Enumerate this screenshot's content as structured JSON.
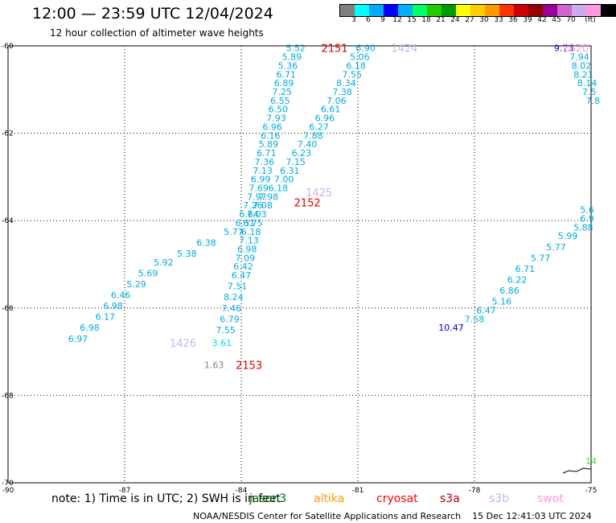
{
  "header": {
    "title": "12:00 — 23:59 UTC 12/04/2024",
    "subtitle": "12 hour collection of altimeter wave heights"
  },
  "colorbar": {
    "colors": [
      "#808080",
      "#00ffff",
      "#00aaff",
      "#0000ff",
      "#00b0ff",
      "#00ff66",
      "#22cc00",
      "#009900",
      "#ffff00",
      "#ffcc00",
      "#ff9900",
      "#ff3300",
      "#cc0000",
      "#990000",
      "#990099",
      "#cc66cc",
      "#ccaaee",
      "#ff99dd",
      "#000000"
    ],
    "labels": [
      "3",
      "6",
      "9",
      "12",
      "15",
      "18",
      "21",
      "24",
      "27",
      "30",
      "33",
      "36",
      "39",
      "42",
      "45",
      "70",
      "(ft)"
    ]
  },
  "footer": {
    "note": "note: 1) Time is in UTC; 2) SWH is in feet",
    "satellites": [
      {
        "name": "jason3",
        "color": "#006600"
      },
      {
        "name": "altika",
        "color": "#ff9900"
      },
      {
        "name": "cryosat",
        "color": "#ff0000"
      },
      {
        "name": "s3a",
        "color": "#aa0000"
      },
      {
        "name": "s3b",
        "color": "#c8b4ec"
      },
      {
        "name": "swot",
        "color": "#ff99dd"
      }
    ],
    "credit": "NOAA/NESDIS Center for Satellite Applications and Research    15 Dec 12:41:03 UTC 2024"
  },
  "chart_data": {
    "type": "scatter",
    "title": "12:00 — 23:59 UTC 12/04/2024",
    "subtitle": "12 hour collection of altimeter wave heights",
    "xlim": [
      -90,
      -75
    ],
    "ylim": [
      -70,
      -60
    ],
    "xticks": [
      -90,
      -87,
      -84,
      -81,
      -78,
      -75
    ],
    "yticks": [
      -60,
      -62,
      -64,
      -66,
      -68,
      -70
    ],
    "grid": true,
    "pass_labels": [
      {
        "text": "2151",
        "x": -81.6,
        "y": -60.05,
        "color": "#dd0000"
      },
      {
        "text": "1424",
        "x": -79.8,
        "y": -60.05,
        "color": "#c8b4ec"
      },
      {
        "text": "1820",
        "x": -75.4,
        "y": -60.05,
        "color": "#ff99dd"
      },
      {
        "text": "1425",
        "x": -82.0,
        "y": -63.35,
        "color": "#c8b4ec"
      },
      {
        "text": "2152",
        "x": -82.3,
        "y": -63.58,
        "color": "#dd0000"
      },
      {
        "text": "1426",
        "x": -85.5,
        "y": -66.8,
        "color": "#c8b4ec"
      },
      {
        "text": "2153",
        "x": -83.8,
        "y": -67.3,
        "color": "#dd0000"
      }
    ],
    "series": [
      {
        "name": "2151",
        "color": "#00aadd",
        "points": [
          {
            "x": -82.6,
            "y": -60.05,
            "v": "5.52"
          },
          {
            "x": -82.7,
            "y": -60.25,
            "v": "5.89"
          },
          {
            "x": -82.8,
            "y": -60.45,
            "v": "5.36"
          },
          {
            "x": -82.85,
            "y": -60.65,
            "v": "6.71"
          },
          {
            "x": -82.9,
            "y": -60.85,
            "v": "6.89"
          },
          {
            "x": -82.95,
            "y": -61.05,
            "v": "7.25"
          },
          {
            "x": -83.0,
            "y": -61.25,
            "v": "6.55"
          },
          {
            "x": -83.05,
            "y": -61.45,
            "v": "6.50"
          },
          {
            "x": -83.1,
            "y": -61.65,
            "v": "7.93"
          },
          {
            "x": -83.2,
            "y": -61.85,
            "v": "6.96"
          },
          {
            "x": -83.25,
            "y": -62.05,
            "v": "6.16"
          },
          {
            "x": -83.3,
            "y": -62.25,
            "v": "5.89"
          },
          {
            "x": -83.35,
            "y": -62.45,
            "v": "6.71"
          },
          {
            "x": -83.4,
            "y": -62.65,
            "v": "7.36"
          },
          {
            "x": -83.45,
            "y": -62.85,
            "v": "7.13"
          },
          {
            "x": -83.5,
            "y": -63.05,
            "v": "6.99"
          },
          {
            "x": -83.55,
            "y": -63.25,
            "v": "7.69"
          },
          {
            "x": -83.6,
            "y": -63.45,
            "v": "7.97"
          },
          {
            "x": -83.7,
            "y": -63.65,
            "v": "7.26"
          },
          {
            "x": -83.8,
            "y": -63.85,
            "v": "6.64"
          },
          {
            "x": -83.9,
            "y": -64.05,
            "v": "6.31"
          }
        ]
      },
      {
        "name": "1424",
        "color": "#00aadd",
        "points": [
          {
            "x": -80.8,
            "y": -60.05,
            "v": "6.90"
          },
          {
            "x": -80.95,
            "y": -60.25,
            "v": "5.06"
          },
          {
            "x": -81.05,
            "y": -60.45,
            "v": "6.18"
          },
          {
            "x": -81.15,
            "y": -60.65,
            "v": "7.55"
          },
          {
            "x": -81.3,
            "y": -60.85,
            "v": "8.34"
          },
          {
            "x": -81.4,
            "y": -61.05,
            "v": "7.38"
          },
          {
            "x": -81.55,
            "y": -61.25,
            "v": "7.06"
          },
          {
            "x": -81.7,
            "y": -61.45,
            "v": "6.61"
          },
          {
            "x": -81.85,
            "y": -61.65,
            "v": "6.96"
          },
          {
            "x": -82.0,
            "y": -61.85,
            "v": "6.27"
          },
          {
            "x": -82.15,
            "y": -62.05,
            "v": "7.88"
          },
          {
            "x": -82.3,
            "y": -62.25,
            "v": "7.40"
          },
          {
            "x": -82.45,
            "y": -62.45,
            "v": "6.23"
          },
          {
            "x": -82.6,
            "y": -62.65,
            "v": "7.15"
          },
          {
            "x": -82.75,
            "y": -62.85,
            "v": "6.31"
          },
          {
            "x": -82.9,
            "y": -63.05,
            "v": "7.00"
          },
          {
            "x": -83.05,
            "y": -63.25,
            "v": "6.18"
          },
          {
            "x": -83.3,
            "y": -63.45,
            "v": "7.98"
          },
          {
            "x": -83.45,
            "y": -63.65,
            "v": "7.08"
          }
        ]
      },
      {
        "name": "2152",
        "color": "#00aadd",
        "points": [
          {
            "x": -83.6,
            "y": -63.85,
            "v": "7.03"
          },
          {
            "x": -83.7,
            "y": -64.05,
            "v": "6.75"
          },
          {
            "x": -83.75,
            "y": -64.25,
            "v": "6.18"
          },
          {
            "x": -83.8,
            "y": -64.45,
            "v": "7.13"
          },
          {
            "x": -83.85,
            "y": -64.65,
            "v": "6.98"
          },
          {
            "x": -83.9,
            "y": -64.85,
            "v": "7.09"
          },
          {
            "x": -83.95,
            "y": -65.05,
            "v": "6.42"
          },
          {
            "x": -84.0,
            "y": -65.25,
            "v": "6.47"
          },
          {
            "x": -84.1,
            "y": -65.5,
            "v": "7.51"
          },
          {
            "x": -84.2,
            "y": -65.75,
            "v": "8.24"
          },
          {
            "x": -84.25,
            "y": -66.0,
            "v": "7.46"
          },
          {
            "x": -84.3,
            "y": -66.25,
            "v": "6.79"
          },
          {
            "x": -84.4,
            "y": -66.5,
            "v": "7.55"
          }
        ]
      },
      {
        "name": "2153",
        "color": "#00dddd",
        "points": [
          {
            "x": -84.5,
            "y": -66.8,
            "v": "3.61"
          }
        ]
      },
      {
        "name": "2153-gray",
        "color": "#808080",
        "points": [
          {
            "x": -84.7,
            "y": -67.3,
            "v": "1.63"
          }
        ]
      },
      {
        "name": "1425",
        "color": "#00aadd",
        "points": [
          {
            "x": -84.2,
            "y": -64.25,
            "v": "5.77"
          },
          {
            "x": -84.9,
            "y": -64.5,
            "v": "6.38"
          },
          {
            "x": -85.4,
            "y": -64.75,
            "v": "5.38"
          },
          {
            "x": -86.0,
            "y": -64.95,
            "v": "5.92"
          },
          {
            "x": -86.4,
            "y": -65.2,
            "v": "5.69"
          },
          {
            "x": -86.7,
            "y": -65.45,
            "v": "5.29"
          },
          {
            "x": -87.1,
            "y": -65.7,
            "v": "6.46"
          },
          {
            "x": -87.3,
            "y": -65.95,
            "v": "6.98"
          },
          {
            "x": -87.5,
            "y": -66.2,
            "v": "6.17"
          },
          {
            "x": -87.9,
            "y": -66.45,
            "v": "6.98"
          },
          {
            "x": -88.2,
            "y": -66.7,
            "v": "6.97"
          }
        ]
      },
      {
        "name": "1820",
        "color": "#00aadd",
        "points": [
          {
            "x": -75.3,
            "y": -60.25,
            "v": "7.94"
          },
          {
            "x": -75.25,
            "y": -60.45,
            "v": "8.02"
          },
          {
            "x": -75.2,
            "y": -60.65,
            "v": "8.21"
          },
          {
            "x": -75.1,
            "y": -60.85,
            "v": "8.14"
          },
          {
            "x": -75.05,
            "y": -61.05,
            "v": "7.5"
          },
          {
            "x": -74.95,
            "y": -61.25,
            "v": "7.8"
          }
        ]
      },
      {
        "name": "1820-blue",
        "color": "#0000cc",
        "points": [
          {
            "x": -75.7,
            "y": -60.05,
            "v": "9.73"
          },
          {
            "x": -78.6,
            "y": -66.45,
            "v": "10.47"
          }
        ]
      },
      {
        "name": "1426",
        "color": "#00aadd",
        "points": [
          {
            "x": -75.1,
            "y": -63.75,
            "v": "5.6"
          },
          {
            "x": -75.1,
            "y": -63.95,
            "v": "6.9"
          },
          {
            "x": -75.2,
            "y": -64.15,
            "v": "5.88"
          },
          {
            "x": -75.6,
            "y": -64.35,
            "v": "5.99"
          },
          {
            "x": -75.9,
            "y": -64.6,
            "v": "5.77"
          },
          {
            "x": -76.3,
            "y": -64.85,
            "v": "5.77"
          },
          {
            "x": -76.7,
            "y": -65.1,
            "v": "6.71"
          },
          {
            "x": -76.9,
            "y": -65.35,
            "v": "6.22"
          },
          {
            "x": -77.1,
            "y": -65.6,
            "v": "6.86"
          },
          {
            "x": -77.3,
            "y": -65.85,
            "v": "5.16"
          },
          {
            "x": -77.7,
            "y": -66.05,
            "v": "6.47"
          },
          {
            "x": -78.0,
            "y": -66.25,
            "v": "7.58"
          }
        ]
      },
      {
        "name": "green-corner",
        "color": "#44dd44",
        "points": [
          {
            "x": -75.0,
            "y": -69.5,
            "v": "14"
          }
        ]
      }
    ]
  }
}
